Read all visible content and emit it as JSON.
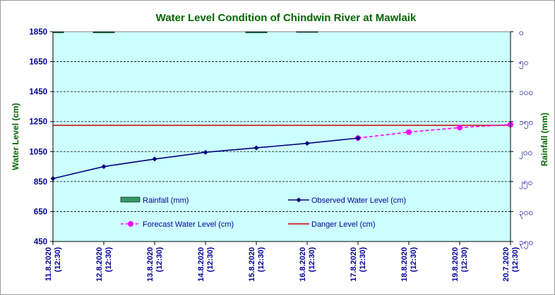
{
  "chart_data": {
    "type": "line",
    "title": "Water Level Condition  of Chindwin River at  Mawlaik",
    "ylabel": "Water Level (cm)",
    "y2label": "Rainfall (mm)",
    "ylim": [
      450,
      1850
    ],
    "yticks": [
      "1850",
      "1650",
      "1450",
      "1250",
      "1050",
      "850",
      "650",
      "450"
    ],
    "y2lim": [
      0,
      350
    ],
    "y2ticks": [
      "၀",
      "၅၀",
      "၁၀၀",
      "၁၅၀",
      "၂၀၀",
      "၂၅၀",
      "၃၀၀",
      "၃၅၀"
    ],
    "grid": true,
    "plot_background": "#ccffff",
    "categories": [
      [
        "11.8.2020",
        "(12:30)"
      ],
      [
        "12.8.2020",
        "(12:30)"
      ],
      [
        "13.8.2020",
        "(12:30)"
      ],
      [
        "14.8.2020",
        "(12:30)"
      ],
      [
        "15.8.2020",
        "(12:30)"
      ],
      [
        "16.8.2020",
        "(12:30)"
      ],
      [
        "17.8.2020",
        "(12:30)"
      ],
      [
        "18.8.2020",
        "(12:30)"
      ],
      [
        "19.8.2020",
        "(12:30)"
      ],
      [
        "20.7.2020",
        "(12:30)"
      ]
    ],
    "series": [
      {
        "name": "Rainfall (mm)",
        "kind": "bar",
        "axis": "right",
        "color": "#339966",
        "values": [
          2,
          2,
          0,
          0,
          2,
          0.5,
          0,
          0,
          0,
          0
        ]
      },
      {
        "name": "Observed Water Level (cm)",
        "kind": "line",
        "axis": "left",
        "color": "#000080",
        "values": [
          870,
          950,
          1000,
          1045,
          1075,
          1105,
          1140,
          null,
          null,
          null
        ]
      },
      {
        "name": "Forecast Water Level (cm)",
        "kind": "dashed-line",
        "axis": "left",
        "color": "#ff00ff",
        "values": [
          null,
          null,
          null,
          null,
          null,
          null,
          1140,
          1180,
          1210,
          1230
        ]
      },
      {
        "name": "Danger Level (cm)",
        "kind": "hline",
        "axis": "left",
        "color": "#cc0000",
        "value": 1225
      }
    ],
    "legend_position": "inside-bottom"
  }
}
